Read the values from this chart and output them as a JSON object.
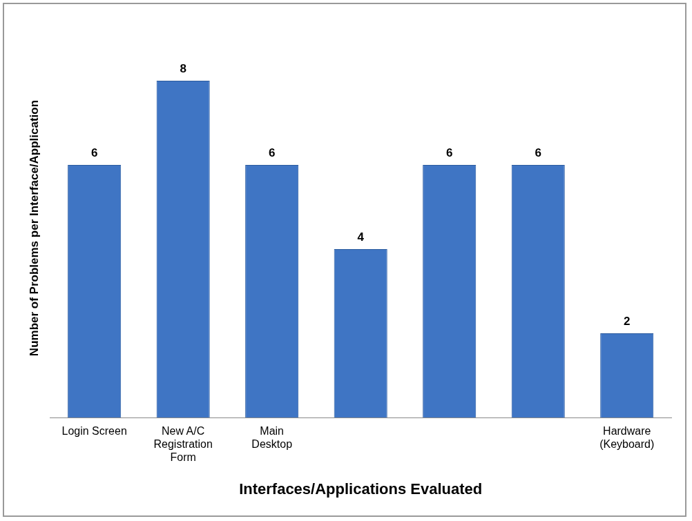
{
  "chart_data": {
    "type": "bar",
    "xlabel": "Interfaces/Applications Evaluated",
    "ylabel": "Number of Problems per Interface/Application",
    "categories": [
      "Login Screen",
      "New A/C Registration Form",
      "Main Desktop",
      null,
      null,
      null,
      "Hardware (Keyboard)"
    ],
    "values": [
      6,
      8,
      6,
      4,
      6,
      6,
      2
    ],
    "color": "#3f75c4",
    "data_labels": true,
    "grid": false,
    "legend": false
  }
}
